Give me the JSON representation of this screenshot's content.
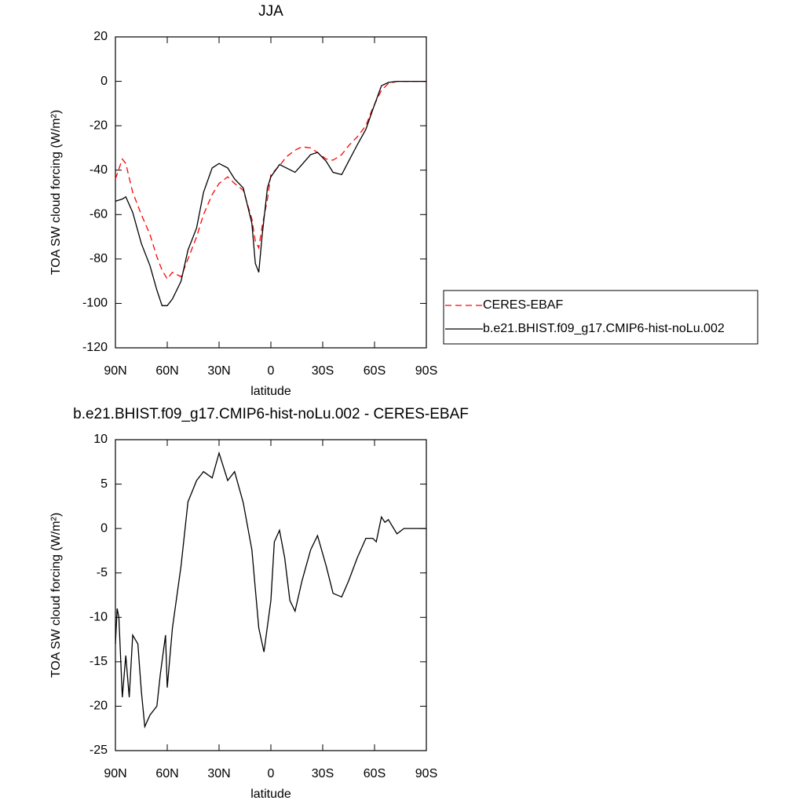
{
  "chart_data": [
    {
      "type": "line",
      "title": "JJA",
      "xlabel": "latitude",
      "ylabel": "TOA SW cloud forcing (W/m²)",
      "x": [
        90,
        86,
        84,
        80,
        75,
        70,
        66,
        63,
        60,
        57,
        52,
        48,
        43,
        39,
        34,
        30,
        25,
        21,
        16,
        11,
        9,
        7,
        5,
        2,
        0,
        -5,
        -9,
        -14,
        -18,
        -23,
        -27,
        -32,
        -36,
        -41,
        -45,
        -50,
        -55,
        -59,
        -64,
        -68,
        -73,
        -90
      ],
      "series": [
        {
          "name": "CERES-EBAF",
          "color": "#ff0000",
          "dashed": true,
          "values": [
            -44,
            -35,
            -37,
            -50,
            -60,
            -69,
            -79,
            -85,
            -89,
            -86,
            -88,
            -80,
            -70,
            -60,
            -51,
            -46,
            -43,
            -46,
            -49,
            -62,
            -72,
            -75,
            -65,
            -53,
            -42,
            -38,
            -34,
            -31,
            -29.5,
            -30,
            -32,
            -35,
            -35.5,
            -33,
            -29,
            -25,
            -20,
            -12,
            -4,
            -1,
            0,
            0
          ]
        },
        {
          "name": "b.e21.BHIST.f09_g17.CMIP6-hist-noLu.002",
          "color": "#000000",
          "dashed": false,
          "values": [
            -54,
            -53,
            -52,
            -59,
            -73,
            -83,
            -94,
            -101,
            -101,
            -98,
            -90,
            -76,
            -66,
            -50,
            -39,
            -37,
            -39,
            -44,
            -48,
            -64,
            -82,
            -86,
            -69,
            -48,
            -43,
            -37.5,
            -39,
            -41,
            -37.5,
            -33,
            -32,
            -36,
            -41,
            -42,
            -36,
            -28.6,
            -21.6,
            -12.7,
            -2,
            -0.5,
            0,
            0
          ]
        }
      ],
      "xlim": [
        90,
        -90
      ],
      "xticks": [
        {
          "value": 90,
          "label": "90N"
        },
        {
          "value": 60,
          "label": "60N"
        },
        {
          "value": 30,
          "label": "30N"
        },
        0,
        {
          "value": -30,
          "label": "30S"
        },
        {
          "value": -60,
          "label": "60S"
        },
        {
          "value": -90,
          "label": "90S"
        }
      ],
      "ylim": [
        -120,
        20
      ],
      "yticks": [
        20,
        0,
        -20,
        -40,
        -60,
        -80,
        -100,
        -120
      ],
      "legend": "right"
    },
    {
      "type": "line",
      "title": "b.e21.BHIST.f09_g17.CMIP6-hist-noLu.002 - CERES-EBAF",
      "xlabel": "latitude",
      "ylabel": "TOA SW cloud forcing (W/m²)",
      "x": [
        90,
        89,
        88,
        86,
        84,
        82,
        80,
        77,
        75,
        73,
        70,
        66,
        64,
        61,
        60,
        57,
        52,
        48,
        43,
        39,
        34,
        30,
        25,
        21,
        16,
        11,
        7,
        4,
        0,
        -2,
        -5,
        -8,
        -11,
        -14,
        -18,
        -23,
        -27,
        -32,
        -36,
        -41,
        -45,
        -50,
        -55,
        -59,
        -61,
        -64,
        -66,
        -68,
        -73,
        -77,
        -90
      ],
      "values": [
        -13,
        -9,
        -10,
        -19,
        -14.3,
        -19,
        -12,
        -13,
        -18.3,
        -22.3,
        -21,
        -20,
        -16.4,
        -12,
        -17.9,
        -11.2,
        -4.2,
        3,
        5.4,
        6.4,
        5.7,
        8.5,
        5.4,
        6.4,
        2.9,
        -2.4,
        -11.2,
        -13.9,
        -8.1,
        -1.5,
        -0.2,
        -3.3,
        -8.1,
        -9.3,
        -5.9,
        -2.4,
        -0.8,
        -4.2,
        -7.3,
        -7.7,
        -5.9,
        -3.3,
        -1.1,
        -1.1,
        -1.5,
        1.3,
        0.7,
        1,
        -0.6,
        0,
        0
      ],
      "color": "#000000",
      "xlim": [
        90,
        -90
      ],
      "xticks": [
        {
          "value": 90,
          "label": "90N"
        },
        {
          "value": 60,
          "label": "60N"
        },
        {
          "value": 30,
          "label": "30N"
        },
        0,
        {
          "value": -30,
          "label": "30S"
        },
        {
          "value": -60,
          "label": "60S"
        },
        {
          "value": -90,
          "label": "90S"
        }
      ],
      "ylim": [
        -25,
        10
      ],
      "yticks": [
        10,
        5,
        0,
        -5,
        -10,
        -15,
        -20,
        -25
      ]
    }
  ]
}
